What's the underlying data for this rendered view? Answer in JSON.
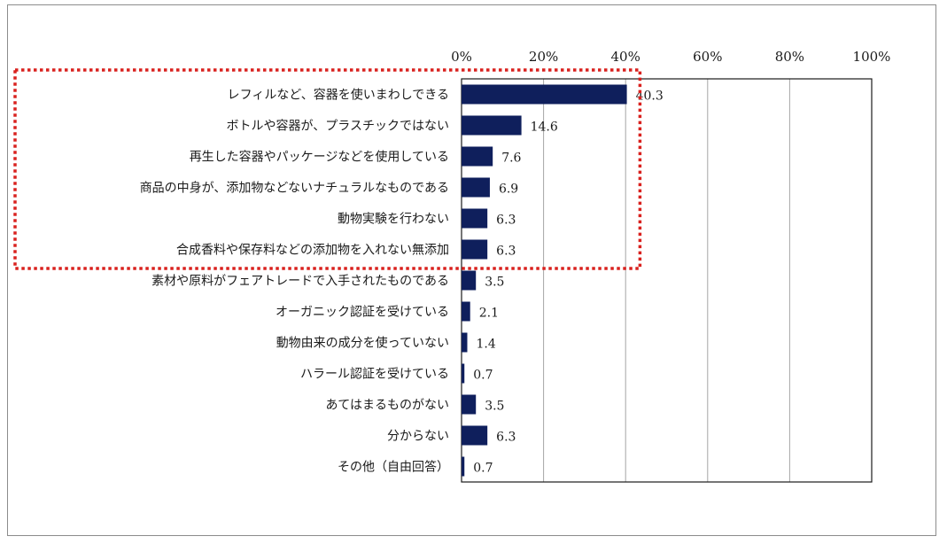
{
  "chart_data": {
    "type": "bar",
    "orientation": "horizontal",
    "title": "",
    "xlabel": "",
    "ylabel": "",
    "xlim": [
      0,
      100
    ],
    "ticks": [
      0,
      20,
      40,
      60,
      80,
      100
    ],
    "tick_labels": [
      "0%",
      "20%",
      "40%",
      "60%",
      "80%",
      "100%"
    ],
    "grid": true,
    "categories": [
      "レフィルなど、容器を使いまわしできる",
      "ボトルや容器が、プラスチックではない",
      "再生した容器やパッケージなどを使用している",
      "商品の中身が、添加物などないナチュラルなものである",
      "動物実験を行わない",
      "合成香料や保存料などの添加物を入れない無添加",
      "素材や原料がフェアトレードで入手されたものである",
      "オーガニック認証を受けている",
      "動物由来の成分を使っていない",
      "ハラール認証を受けている",
      "あてはまるものがない",
      "分からない",
      "その他（自由回答）"
    ],
    "values": [
      40.3,
      14.6,
      7.6,
      6.9,
      6.3,
      6.3,
      3.5,
      2.1,
      1.4,
      0.7,
      3.5,
      6.3,
      0.7
    ],
    "value_labels": [
      "40.3",
      "14.6",
      "7.6",
      "6.9",
      "6.3",
      "6.3",
      "3.5",
      "2.1",
      "1.4",
      "0.7",
      "3.5",
      "6.3",
      "0.7"
    ],
    "highlight": {
      "from_index": 0,
      "to_index": 5,
      "style": "dotted",
      "color": "#d9211e"
    },
    "bar_color": "#0f1f5c",
    "grid_color": "#a6a6a6",
    "axis_color": "#1a1a1a"
  }
}
